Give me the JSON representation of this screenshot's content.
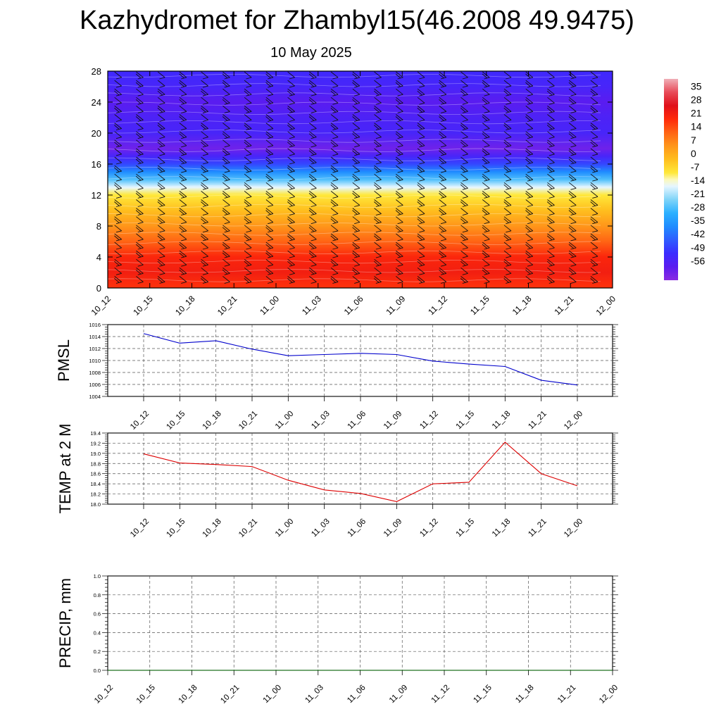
{
  "page": {
    "title": "Kazhydromet for Zhambyl15(46.2008 49.9475)",
    "subtitle": "10 May 2025"
  },
  "chart_data": [
    {
      "type": "heatmap",
      "title": "",
      "xlabel": "",
      "ylabel": "",
      "x_ticks": [
        "10_12",
        "10_15",
        "10_18",
        "10_21",
        "11_00",
        "11_03",
        "11_06",
        "11_09",
        "11_12",
        "11_15",
        "11_18",
        "11_21",
        "12_00"
      ],
      "y_ticks": [
        0,
        4,
        8,
        12,
        16,
        20,
        24,
        28
      ],
      "ylim": [
        0,
        28
      ],
      "colorbar_labels": [
        "35",
        "28",
        "21",
        "14",
        "7",
        "0",
        "-7",
        "-14",
        "-21",
        "-28",
        "-35",
        "-42",
        "-49",
        "-56"
      ],
      "colorbar_range": [
        -63,
        42
      ],
      "temperature_profile_by_level": [
        {
          "level": 0,
          "value": 20
        },
        {
          "level": 2,
          "value": 24
        },
        {
          "level": 4,
          "value": 22
        },
        {
          "level": 6,
          "value": 14
        },
        {
          "level": 8,
          "value": 7
        },
        {
          "level": 10,
          "value": 0
        },
        {
          "level": 12,
          "value": -7
        },
        {
          "level": 13,
          "value": -14
        },
        {
          "level": 14,
          "value": -25
        },
        {
          "level": 15,
          "value": -35
        },
        {
          "level": 16,
          "value": -45
        },
        {
          "level": 17,
          "value": -52
        },
        {
          "level": 18,
          "value": -59
        },
        {
          "level": 20,
          "value": -52
        },
        {
          "level": 22,
          "value": -53
        },
        {
          "level": 24,
          "value": -56
        },
        {
          "level": 26,
          "value": -52
        },
        {
          "level": 28,
          "value": -50
        }
      ],
      "overlays": "wind barbs",
      "grid": false
    },
    {
      "type": "line",
      "ylabel": "PMSL",
      "x": [
        "10_12",
        "10_15",
        "10_18",
        "10_21",
        "11_00",
        "11_03",
        "11_06",
        "11_09",
        "11_12",
        "11_15",
        "11_18",
        "11_21",
        "12_00"
      ],
      "series": [
        {
          "values": [
            1014.5,
            1012.9,
            1013.3,
            1011.9,
            1010.8,
            1011.0,
            1011.2,
            1011.0,
            1009.9,
            1009.4,
            1009.0,
            1006.7,
            1005.9
          ],
          "color": "#0000cc"
        }
      ],
      "y_ticks": [
        "1004",
        "1006",
        "1008",
        "1010",
        "1012",
        "1014",
        "1016"
      ],
      "ylim": [
        1004,
        1016
      ],
      "grid": true
    },
    {
      "type": "line",
      "ylabel": "TEMP at 2 M",
      "x": [
        "10_12",
        "10_15",
        "10_18",
        "10_21",
        "11_00",
        "11_03",
        "11_06",
        "11_09",
        "11_12",
        "11_15",
        "11_18",
        "11_21",
        "12_00"
      ],
      "series": [
        {
          "values": [
            18.99,
            18.81,
            18.78,
            18.74,
            18.47,
            18.28,
            18.21,
            18.05,
            18.4,
            18.43,
            19.22,
            18.6,
            18.36
          ],
          "color": "#dd0000"
        }
      ],
      "y_ticks": [
        "18.0",
        "18.2",
        "18.4",
        "18.6",
        "18.8",
        "19.0",
        "19.2",
        "19.4"
      ],
      "ylim": [
        18.0,
        19.4
      ],
      "grid": true
    },
    {
      "type": "line",
      "ylabel": "PRECIP, mm",
      "x": [
        "10_12",
        "10_15",
        "10_18",
        "10_21",
        "11_00",
        "11_03",
        "11_06",
        "11_09",
        "11_12",
        "11_15",
        "11_18",
        "11_21",
        "12_00"
      ],
      "series": [
        {
          "values": [
            0,
            0,
            0,
            0,
            0,
            0,
            0,
            0,
            0,
            0,
            0,
            0,
            0
          ],
          "color": "#006600"
        }
      ],
      "y_ticks": [
        "0.0",
        "0.2",
        "0.4",
        "0.6",
        "0.8",
        "1.0"
      ],
      "ylim": [
        0,
        1.0
      ],
      "grid": true
    }
  ]
}
